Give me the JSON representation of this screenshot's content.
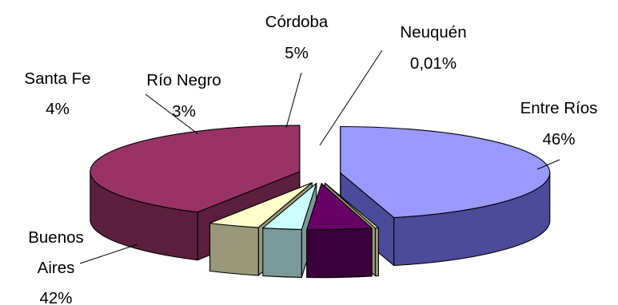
{
  "chart_data": {
    "type": "pie",
    "style": "3d-exploded",
    "slices": [
      {
        "label": "Entre Ríos",
        "value_text": "46%",
        "value": 46,
        "top": "#9999ff",
        "side": "#4b4b99"
      },
      {
        "label": "Neuquén",
        "value_text": "0,01%",
        "value": 0.01,
        "top": "#ffffcc",
        "side": "#99997a"
      },
      {
        "label": "Córdoba",
        "value_text": "5%",
        "value": 5,
        "top": "#660066",
        "side": "#3a003a"
      },
      {
        "label": "Río Negro",
        "value_text": "3%",
        "value": 3,
        "top": "#ccffff",
        "side": "#7a9999"
      },
      {
        "label": "Santa Fe",
        "value_text": "4%",
        "value": 4,
        "top": "#ffffcc",
        "side": "#99997a"
      },
      {
        "label": "Buenos Aires",
        "value_text": "42%",
        "value": 42,
        "top": "#993366",
        "side": "#5c1f3d"
      }
    ]
  }
}
